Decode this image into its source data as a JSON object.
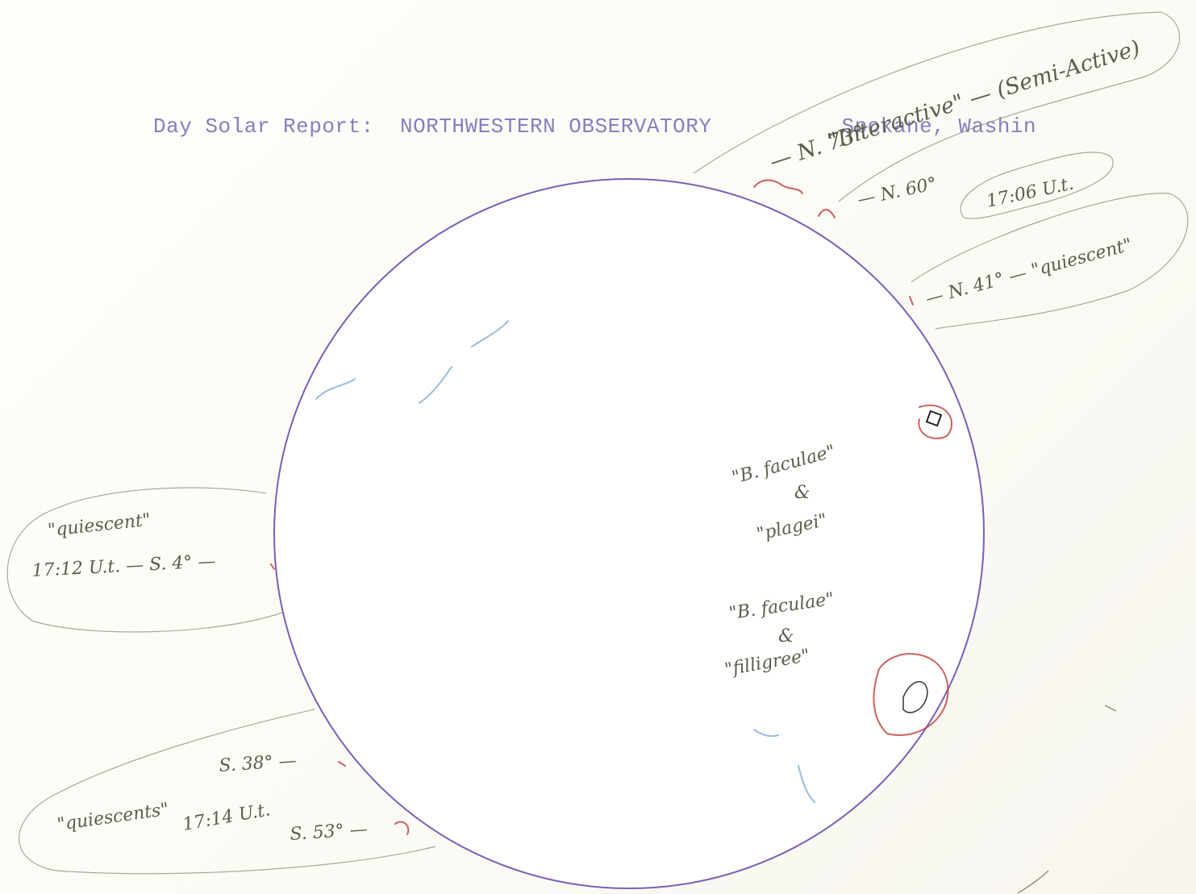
{
  "header": {
    "label": "Day Solar Report:",
    "observatory": "NORTHWESTERN OBSERVATORY",
    "location": "Spokane, Washin"
  },
  "annotations": {
    "n73": "— N. 73°",
    "interactive": "\"Interactive\" — (Semi-Active)",
    "n60": "— N. 60°",
    "time_1706": "17:06 U.t.",
    "n41": "— N. 41° — \"quiescent\"",
    "b_faculae_1": "\"B. faculae\"",
    "amp_1": "&",
    "plagei": "\"plagei\"",
    "b_faculae_2": "\"B. faculae\"",
    "amp_2": "&",
    "filligree": "\"filligree\"",
    "quiescent_s4": "\"quiescent\"",
    "time_s4": "17:12 U.t. — S. 4° —",
    "s38": "S. 38° —",
    "quiescents": "\"quiescents\"",
    "time_1714": "17:14 U.t.",
    "s53": "S. 53° —"
  },
  "colors": {
    "typed": "#7e74bf",
    "disk_outline": "#7a5fb8",
    "pencil": "#7a7a66",
    "prominence_red": "#c23a3a",
    "plage_blue": "#6f9fd0"
  }
}
